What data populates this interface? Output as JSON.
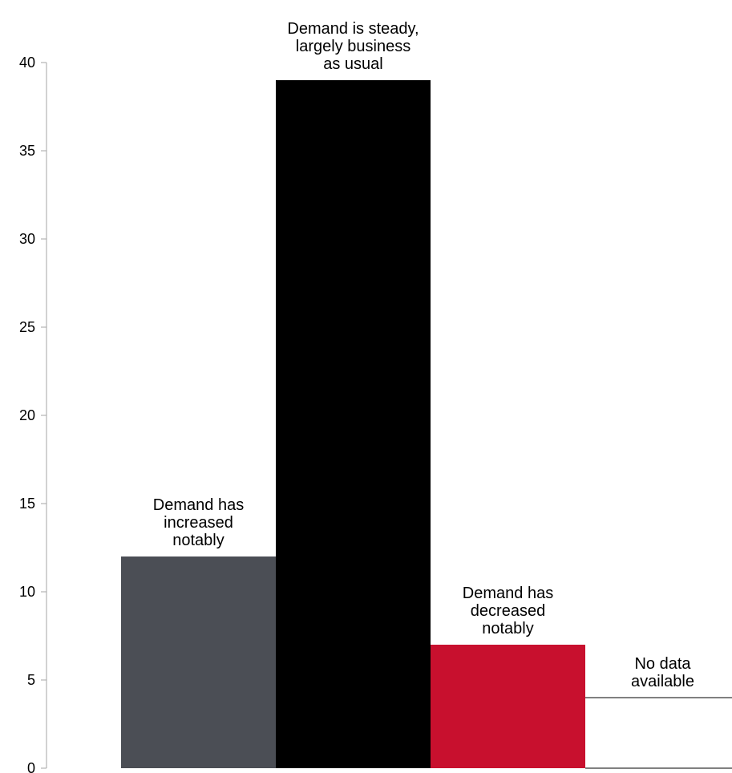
{
  "chart_data": {
    "type": "bar",
    "categories": [
      "Demand has increased notably",
      "Demand is steady, largely business as usual",
      "Demand has decreased notably",
      "No data available"
    ],
    "label_lines": [
      [
        "Demand has",
        "increased",
        "notably"
      ],
      [
        "Demand is steady,",
        "largely business",
        "as usual"
      ],
      [
        "Demand has",
        "decreased",
        "notably"
      ],
      [
        "No data",
        "available"
      ]
    ],
    "values": [
      12,
      39,
      7,
      4
    ],
    "colors": [
      "#4b4e55",
      "#000000",
      "#c8102e",
      "#ffffff"
    ],
    "ylim": [
      0,
      40
    ],
    "yticks": [
      0,
      5,
      10,
      15,
      20,
      25,
      30,
      35,
      40
    ],
    "title": "",
    "xlabel": "",
    "ylabel": "",
    "grid": false,
    "axis_color": "#a6a6a6"
  }
}
